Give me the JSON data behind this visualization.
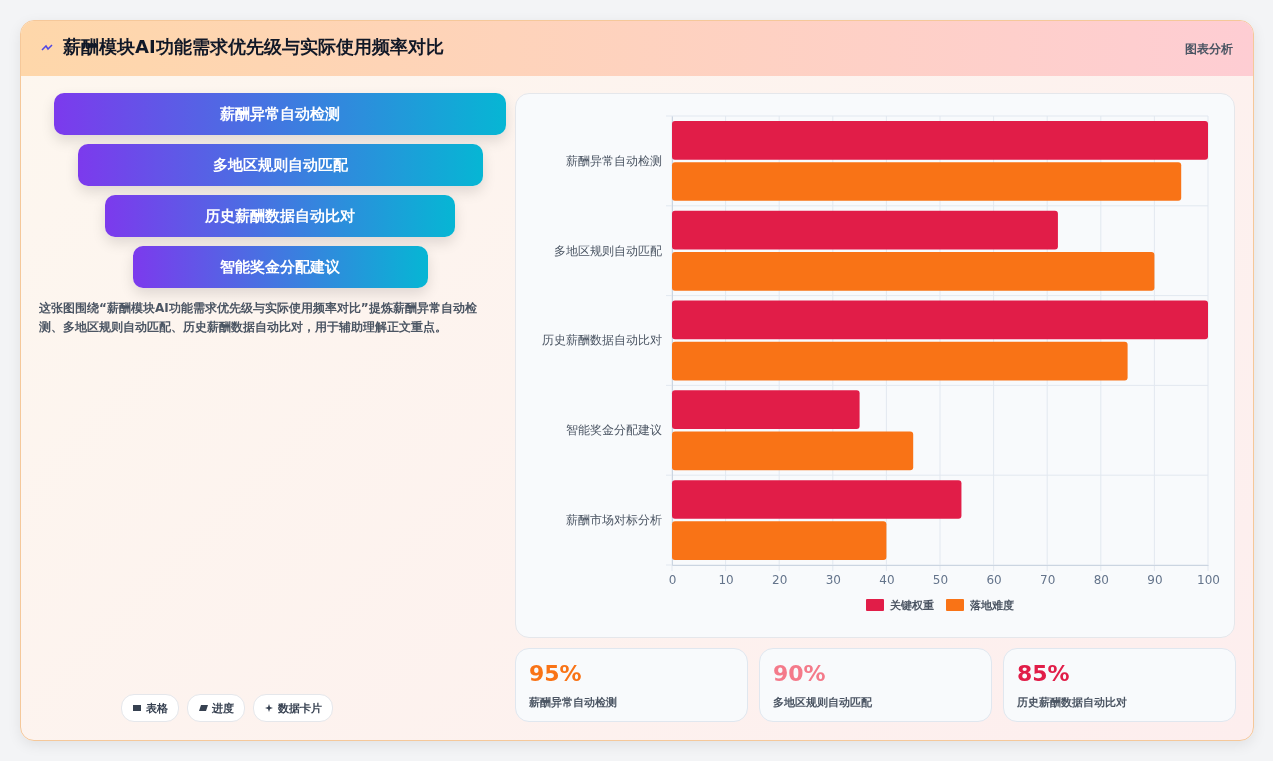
{
  "chart_data": [
    {
      "type": "other",
      "title": "薪酬模块AI功能需求优先级与实际使用频率对比",
      "categories": [
        "薪酬异常自动检测",
        "多地区规则自动匹配",
        "历史薪酬数据自动比对",
        "智能奖金分配建议"
      ],
      "annotations": [
        "图表分析",
        "这张图围绕“薪酬模块AI功能需求优先级与实际使用频率对比”提炼薪酬异常自动检测、多地区规则自动匹配、历史薪酬数据自动比对，用于辅助理解正文重点。",
        "表格",
        "进度",
        "数据卡片"
      ]
    },
    {
      "type": "bar",
      "orientation": "horizontal",
      "categories": [
        "薪酬异常自动检测",
        "多地区规则自动匹配",
        "历史薪酬数据自动比对",
        "智能奖金分配建议",
        "薪酬市场对标分析"
      ],
      "series": [
        {
          "name": "关键权重",
          "color": "#e11d48",
          "values": [
            100,
            72,
            100,
            35,
            54
          ]
        },
        {
          "name": "落地难度",
          "color": "#f97316",
          "values": [
            95,
            90,
            85,
            45,
            40
          ]
        }
      ],
      "xlim": [
        0,
        100
      ],
      "xticks": [
        0,
        10,
        20,
        30,
        40,
        50,
        60,
        70,
        80,
        90,
        100
      ],
      "grid": true,
      "legend": "bottom"
    },
    {
      "type": "other",
      "annotations": [
        "95%",
        "薪酬异常自动检测",
        "90%",
        "多地区规则自动匹配",
        "85%",
        "历史薪酬数据自动比对"
      ]
    }
  ]
}
